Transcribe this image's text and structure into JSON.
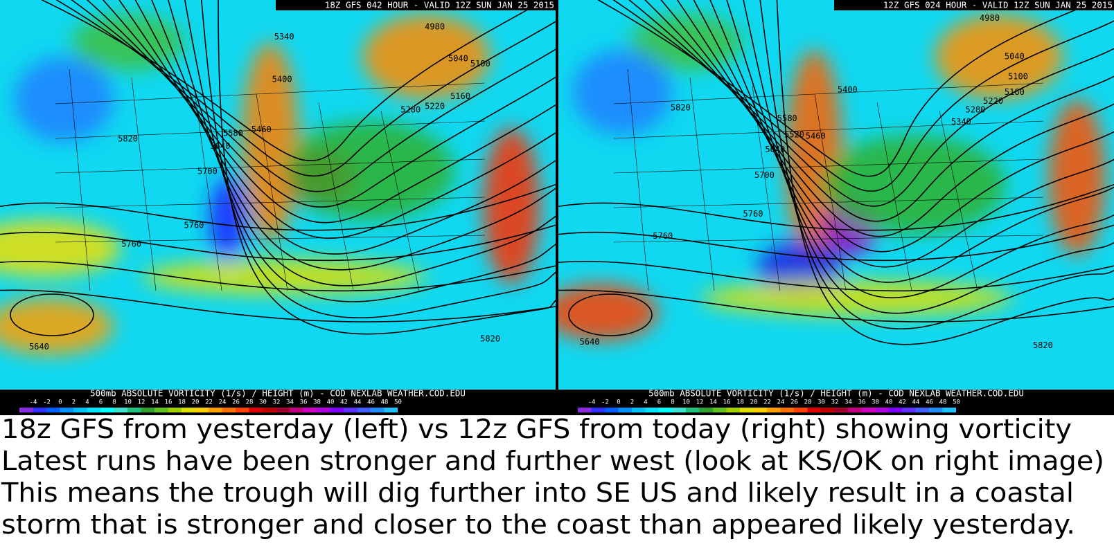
{
  "panels": [
    {
      "header": "18Z GFS 042 HOUR - VALID 12Z SUN JAN 25 2015",
      "contours": [
        "4980",
        "5040",
        "5100",
        "5160",
        "5220",
        "5280",
        "5340",
        "5400",
        "5460",
        "5580",
        "5640",
        "5700",
        "5760",
        "5760",
        "5820",
        "5820",
        "5640"
      ],
      "footer": "500mb ABSOLUTE VORTICITY (1/s) / HEIGHT (m) - COD NEXLAB   WEATHER.COD.EDU"
    },
    {
      "header": "12Z GFS 024 HOUR - VALID 12Z SUN JAN 25 2015",
      "contours": [
        "4980",
        "5040",
        "5100",
        "5160",
        "5220",
        "5280",
        "5340",
        "5400",
        "5460",
        "5580",
        "5520",
        "5640",
        "5700",
        "5760",
        "5760",
        "5820",
        "5820",
        "5640"
      ],
      "footer": "500mb ABSOLUTE VORTICITY (1/s) / HEIGHT (m) - COD NEXLAB   WEATHER.COD.EDU"
    }
  ],
  "colorbar": {
    "ticks": [
      -4,
      -2,
      0,
      2,
      4,
      6,
      8,
      10,
      12,
      14,
      16,
      18,
      20,
      22,
      24,
      26,
      28,
      30,
      32,
      34,
      36,
      38,
      40,
      42,
      44,
      46,
      48,
      50
    ]
  },
  "caption": [
    "18z GFS from yesterday (left) vs 12z GFS from today (right) showing vorticity",
    "Latest runs have been stronger and further west (look at KS/OK on right image)",
    "This means the trough will dig further into SE US and likely result in a coastal",
    "storm that is stronger and closer to the coast than appeared likely yesterday."
  ]
}
